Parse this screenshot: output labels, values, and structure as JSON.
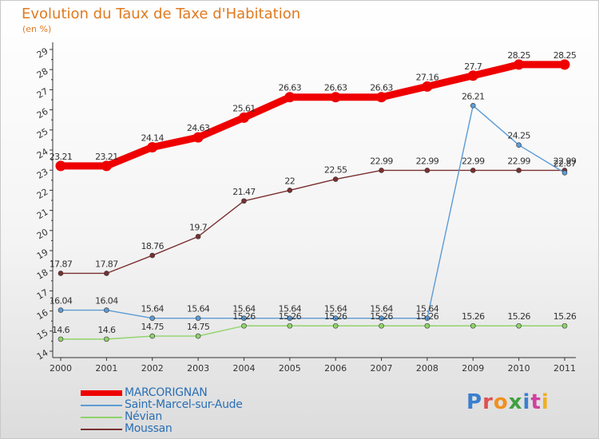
{
  "header": {
    "title": "Evolution du Taux de Taxe d'Habitation",
    "unit": "(en %)"
  },
  "logo": {
    "text": "Proxiti",
    "colors": [
      "#3a7fd0",
      "#e05050",
      "#f09020",
      "#40a040",
      "#3a7fd0",
      "#d040a0",
      "#f0b020"
    ]
  },
  "chart_data": {
    "type": "line",
    "title": "Evolution du Taux de Taxe d'Habitation",
    "ylabel": "(en %)",
    "xlabel": "",
    "x": [
      "2000",
      "2001",
      "2002",
      "2003",
      "2004",
      "2005",
      "2006",
      "2007",
      "2008",
      "2009",
      "2010",
      "2011"
    ],
    "ylim": [
      14,
      29
    ],
    "yticks": [
      "14",
      "15",
      "16",
      "17",
      "18",
      "19",
      "20",
      "21",
      "22",
      "23",
      "24",
      "25",
      "26",
      "27",
      "28",
      "29"
    ],
    "grid": false,
    "legend": "bottom-left",
    "series": [
      {
        "name": "MARCORIGNAN",
        "color": "#ee0000",
        "values": [
          23.21,
          23.21,
          24.14,
          24.63,
          25.61,
          26.63,
          26.63,
          26.63,
          27.16,
          27.7,
          28.25,
          28.25
        ],
        "labels": [
          "23.21",
          "23.21",
          "24.14",
          "24.63",
          "25.61",
          "26.63",
          "26.63",
          "26.63",
          "27.16",
          "27.7",
          "28.25",
          "28.25"
        ]
      },
      {
        "name": "Saint-Marcel-sur-Aude",
        "color": "#5c9bd5",
        "values": [
          16.04,
          16.04,
          15.64,
          15.64,
          15.64,
          15.64,
          15.64,
          15.64,
          15.64,
          26.21,
          24.25,
          22.87
        ],
        "labels": [
          "16.04",
          "16.04",
          "15.64",
          "15.64",
          "15.64",
          "15.64",
          "15.64",
          "15.64",
          "15.64",
          "26.21",
          "24.25",
          "22.87"
        ]
      },
      {
        "name": "Névian",
        "color": "#8fd36a",
        "values": [
          14.6,
          14.6,
          14.75,
          14.75,
          15.26,
          15.26,
          15.26,
          15.26,
          15.26,
          15.26,
          15.26,
          15.26
        ],
        "labels": [
          "14.6",
          "14.6",
          "14.75",
          "14.75",
          "15.26",
          "15.26",
          "15.26",
          "15.26",
          "15.26",
          "15.26",
          "15.26",
          "15.26"
        ]
      },
      {
        "name": "Moussan",
        "color": "#7a3030",
        "values": [
          17.87,
          17.87,
          18.76,
          19.7,
          21.47,
          22,
          22.55,
          22.99,
          22.99,
          22.99,
          22.99,
          22.99
        ],
        "labels": [
          "17.87",
          "17.87",
          "18.76",
          "19.7",
          "21.47",
          "22",
          "22.55",
          "22.99",
          "22.99",
          "22.99",
          "22.99",
          "22.99"
        ]
      }
    ]
  }
}
